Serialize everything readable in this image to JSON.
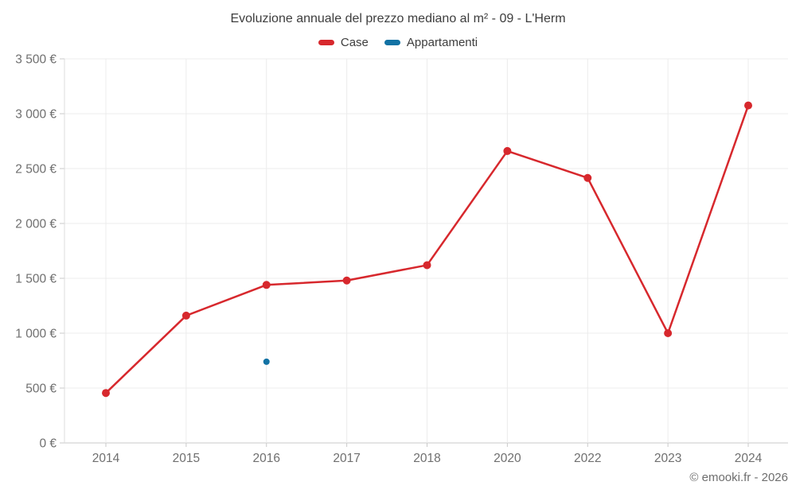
{
  "chart_data": {
    "type": "line",
    "title": "Evoluzione annuale del prezzo mediano al m² - 09 - L'Herm",
    "categories": [
      "2014",
      "2015",
      "2016",
      "2017",
      "2018",
      "2020",
      "2022",
      "2023",
      "2024"
    ],
    "series": [
      {
        "name": "Case",
        "color": "#d7282d",
        "marker_radius": 5,
        "line_width": 2.5,
        "values": [
          455,
          1160,
          1440,
          1480,
          1620,
          2660,
          2415,
          1000,
          3075
        ]
      },
      {
        "name": "Appartamenti",
        "color": "#1272a4",
        "marker_radius": 4,
        "line_width": 2.5,
        "values": [
          null,
          null,
          740,
          null,
          null,
          null,
          null,
          null,
          null
        ]
      }
    ],
    "ylim": [
      0,
      3500
    ],
    "ytick_values": [
      0,
      500,
      1000,
      1500,
      2000,
      2500,
      3000,
      3500
    ],
    "ytick_labels": [
      "0 €",
      "500 €",
      "1 000 €",
      "1 500 €",
      "2 000 €",
      "2 500 €",
      "3 000 €",
      "3 500 €"
    ],
    "grid": true,
    "legend_position": "top",
    "xlabel": "",
    "ylabel": ""
  },
  "footer": {
    "copyright": "© emooki.fr - 2026"
  },
  "colors": {
    "title": "#3d3d3d",
    "tick_label": "#6f6f6f",
    "grid": "#ececec",
    "axis": "#c9c9c9",
    "left_axis": "#dcdcdc",
    "copyright": "#6e6e6e",
    "background": "#ffffff"
  }
}
